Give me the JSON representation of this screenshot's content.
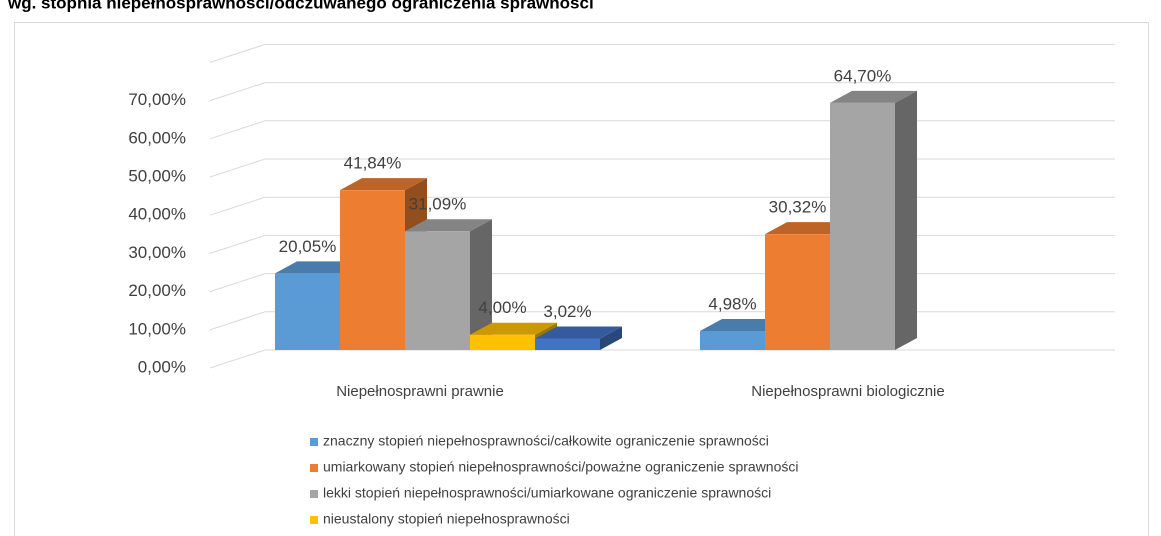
{
  "chart_data": {
    "type": "bar3d",
    "title": "wg. stopnia niepełnosprawności/odczuwanego ograniczenia sprawności",
    "categories": [
      "Niepełnosprawni prawnie",
      "Niepełnosprawni biologicznie"
    ],
    "series": [
      {
        "name": "znaczny stopień niepełnosprawności/całkowite ograniczenie sprawności",
        "color": "#5b9bd5",
        "values": [
          20.05,
          4.98
        ],
        "value_labels": [
          "20,05%",
          "4,98%"
        ]
      },
      {
        "name": "umiarkowany stopień niepełnosprawności/poważne ograniczenie sprawności",
        "color": "#ed7d31",
        "values": [
          41.84,
          30.32
        ],
        "value_labels": [
          "41,84%",
          "30,32%"
        ]
      },
      {
        "name": "lekki stopień niepełnosprawności/umiarkowane ograniczenie sprawności",
        "color": "#a5a5a5",
        "values": [
          31.09,
          64.7
        ],
        "value_labels": [
          "31,09%",
          "64,70%"
        ]
      },
      {
        "name": "nieustalony stopień niepełnosprawności",
        "color": "#ffc000",
        "values": [
          4.0,
          null
        ],
        "value_labels": [
          "4,00%",
          null
        ]
      },
      {
        "color": "#4472c4",
        "values": [
          3.02,
          null
        ],
        "value_labels": [
          "3,02%",
          null
        ]
      }
    ],
    "ylim": [
      0,
      80
    ],
    "yticks": [
      {
        "value": 0,
        "label": "0,00%"
      },
      {
        "value": 10,
        "label": "10,00%"
      },
      {
        "value": 20,
        "label": "20,00%"
      },
      {
        "value": 30,
        "label": "30,00%"
      },
      {
        "value": 40,
        "label": "40,00%"
      },
      {
        "value": 50,
        "label": "50,00%"
      },
      {
        "value": 60,
        "label": "60,00%"
      },
      {
        "value": 70,
        "label": "70,00%"
      }
    ],
    "grid": true
  }
}
